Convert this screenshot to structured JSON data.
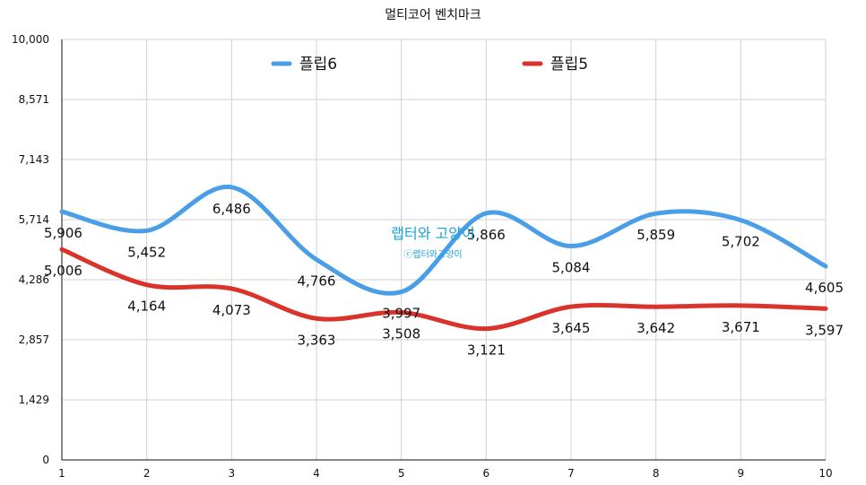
{
  "chart_data": {
    "type": "line",
    "title": "멀티코어 벤치마크",
    "x": [
      1,
      2,
      3,
      4,
      5,
      6,
      7,
      8,
      9,
      10
    ],
    "x_tick_labels": [
      "1",
      "2",
      "3",
      "4",
      "5",
      "6",
      "7",
      "8",
      "9",
      "10"
    ],
    "ylim": [
      0,
      10000
    ],
    "y_tick_labels": [
      "0",
      "1,429",
      "2,857",
      "4,286",
      "5,714",
      "7,143",
      "8,571",
      "10,000"
    ],
    "y_tick_values": [
      0,
      1429,
      2857,
      4286,
      5714,
      7143,
      8571,
      10000
    ],
    "grid": true,
    "legend_position": "top",
    "smooth": true,
    "series": [
      {
        "name": "플립6",
        "color": "#4a9ee8",
        "values": [
          5906,
          5452,
          6486,
          4766,
          3997,
          5866,
          5084,
          5859,
          5702,
          4605
        ],
        "labels": [
          "5,906",
          "5,452",
          "6,486",
          "4,766",
          "3,997",
          "5,866",
          "5,084",
          "5,859",
          "5,702",
          "4,605"
        ]
      },
      {
        "name": "플립5",
        "color": "#d9342b",
        "values": [
          5006,
          4164,
          4073,
          3363,
          3508,
          3121,
          3645,
          3642,
          3671,
          3597
        ],
        "labels": [
          "5,006",
          "4,164",
          "4,073",
          "3,363",
          "3,508",
          "3,121",
          "3,645",
          "3,642",
          "3,671",
          "3,597"
        ]
      }
    ]
  },
  "watermark": {
    "main": "랩터와 고양이",
    "sub": "ⓒ랩터와고양이"
  }
}
